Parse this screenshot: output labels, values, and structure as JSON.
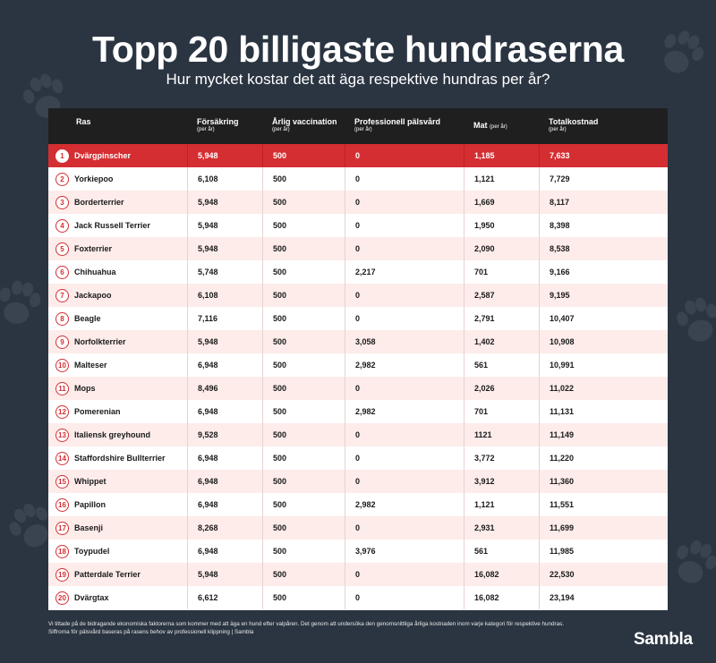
{
  "title": "Topp 20 billigaste hundraserna",
  "subtitle": "Hur mycket kostar det att äga respektive hundras per år?",
  "headers": {
    "ras": "Ras",
    "forsakring": "Försäkring",
    "forsakring_unit": "(per år)",
    "vaccination": "Årlig vaccination",
    "vaccination_unit": "(per år)",
    "palsvard": "Professionell pälsvård",
    "palsvard_unit": "(per år)",
    "mat": "Mat",
    "mat_unit": "(per år)",
    "total": "Totalkostnad",
    "total_unit": "(per år)"
  },
  "rows": [
    {
      "rank": "1",
      "breed": "Dvärgpinscher",
      "insurance": "5,948",
      "vaccination": "500",
      "grooming": "0",
      "food": "1,185",
      "total": "7,633"
    },
    {
      "rank": "2",
      "breed": "Yorkiepoo",
      "insurance": "6,108",
      "vaccination": "500",
      "grooming": "0",
      "food": "1,121",
      "total": "7,729"
    },
    {
      "rank": "3",
      "breed": "Borderterrier",
      "insurance": "5,948",
      "vaccination": "500",
      "grooming": "0",
      "food": "1,669",
      "total": "8,117"
    },
    {
      "rank": "4",
      "breed": "Jack Russell Terrier",
      "insurance": "5,948",
      "vaccination": "500",
      "grooming": "0",
      "food": "1,950",
      "total": "8,398"
    },
    {
      "rank": "5",
      "breed": "Foxterrier",
      "insurance": "5,948",
      "vaccination": "500",
      "grooming": "0",
      "food": "2,090",
      "total": "8,538"
    },
    {
      "rank": "6",
      "breed": "Chihuahua",
      "insurance": "5,748",
      "vaccination": "500",
      "grooming": "2,217",
      "food": "701",
      "total": "9,166"
    },
    {
      "rank": "7",
      "breed": "Jackapoo",
      "insurance": "6,108",
      "vaccination": "500",
      "grooming": "0",
      "food": "2,587",
      "total": "9,195"
    },
    {
      "rank": "8",
      "breed": "Beagle",
      "insurance": "7,116",
      "vaccination": "500",
      "grooming": "0",
      "food": "2,791",
      "total": "10,407"
    },
    {
      "rank": "9",
      "breed": "Norfolkterrier",
      "insurance": "5,948",
      "vaccination": "500",
      "grooming": "3,058",
      "food": "1,402",
      "total": "10,908"
    },
    {
      "rank": "10",
      "breed": "Malteser",
      "insurance": "6,948",
      "vaccination": "500",
      "grooming": "2,982",
      "food": "561",
      "total": "10,991"
    },
    {
      "rank": "11",
      "breed": "Mops",
      "insurance": "8,496",
      "vaccination": "500",
      "grooming": "0",
      "food": "2,026",
      "total": "11,022"
    },
    {
      "rank": "12",
      "breed": "Pomerenian",
      "insurance": "6,948",
      "vaccination": "500",
      "grooming": "2,982",
      "food": "701",
      "total": "11,131"
    },
    {
      "rank": "13",
      "breed": "Italiensk greyhound",
      "insurance": "9,528",
      "vaccination": "500",
      "grooming": "0",
      "food": "1121",
      "total": "11,149"
    },
    {
      "rank": "14",
      "breed": "Staffordshire Bullterrier",
      "insurance": "6,948",
      "vaccination": "500",
      "grooming": "0",
      "food": "3,772",
      "total": "11,220"
    },
    {
      "rank": "15",
      "breed": "Whippet",
      "insurance": "6,948",
      "vaccination": "500",
      "grooming": "0",
      "food": "3,912",
      "total": "11,360"
    },
    {
      "rank": "16",
      "breed": "Papillon",
      "insurance": "6,948",
      "vaccination": "500",
      "grooming": "2,982",
      "food": "1,121",
      "total": "11,551"
    },
    {
      "rank": "17",
      "breed": "Basenji",
      "insurance": "8,268",
      "vaccination": "500",
      "grooming": "0",
      "food": "2,931",
      "total": "11,699"
    },
    {
      "rank": "18",
      "breed": "Toypudel",
      "insurance": "6,948",
      "vaccination": "500",
      "grooming": "3,976",
      "food": "561",
      "total": "11,985"
    },
    {
      "rank": "19",
      "breed": "Patterdale Terrier",
      "insurance": "5,948",
      "vaccination": "500",
      "grooming": "0",
      "food": "16,082",
      "total": "22,530"
    },
    {
      "rank": "20",
      "breed": "Dvärgtax",
      "insurance": "6,612",
      "vaccination": "500",
      "grooming": "0",
      "food": "16,082",
      "total": "23,194"
    }
  ],
  "footnote": "Vi tittade på de bidragande ekonomiska faktorerna som kommer med att äga en hund efter valpåren. Det genom att undersöka den genomsnittliga årliga kostnaden inom varje kategori för respektive hundras. Siffrorna för pälsvård baseras på rasens behov av professionell klippning | Sambla",
  "logo": "Sambla",
  "colors": {
    "background": "#2b3542",
    "accent": "#d42e32",
    "header_bg": "#1f1f1f",
    "row_tint": "#fdecea"
  },
  "icons": [
    "paw-icon"
  ]
}
